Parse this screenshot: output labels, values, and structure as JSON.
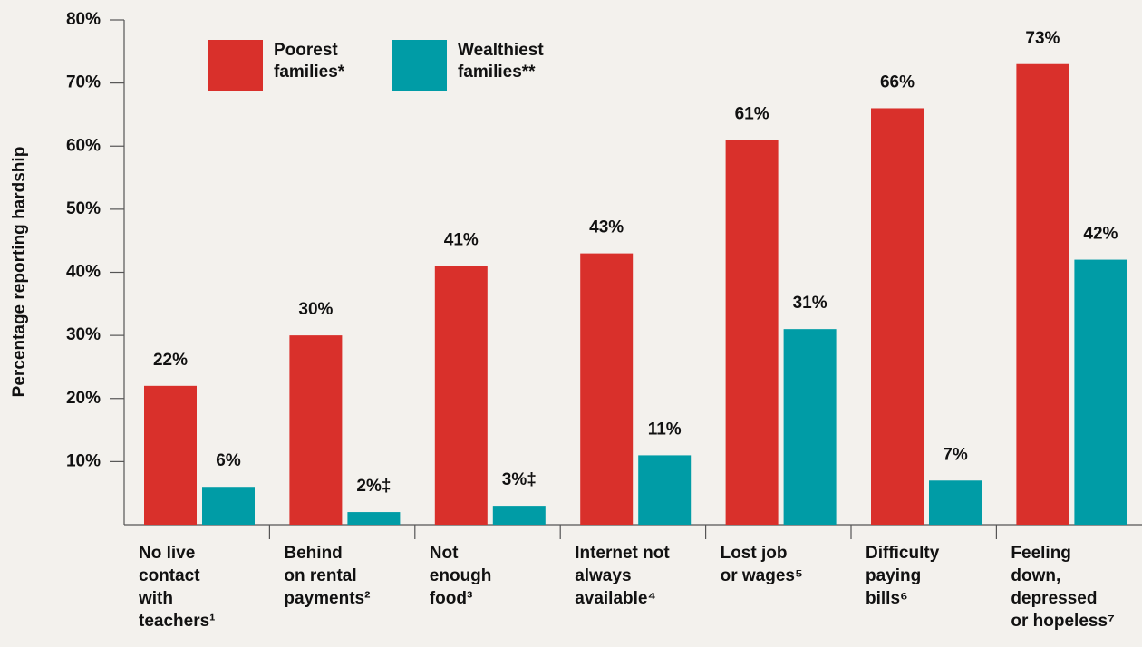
{
  "chart_data": {
    "type": "bar",
    "y_label": "Percentage reporting hardship",
    "categories": [
      [
        "No live",
        "contact",
        "with",
        "teachers¹"
      ],
      [
        "Behind",
        "on rental",
        "payments²"
      ],
      [
        "Not",
        "enough",
        "food³"
      ],
      [
        "Internet not",
        "always",
        "available⁴"
      ],
      [
        "Lost job",
        "or wages⁵"
      ],
      [
        "Difficulty",
        "paying",
        "bills⁶"
      ],
      [
        "Feeling",
        "down,",
        "depressed",
        "or hopeless⁷"
      ]
    ],
    "series": [
      {
        "name": "Poorest families*",
        "color": "#d9302b",
        "values": [
          22,
          30,
          41,
          43,
          61,
          66,
          73
        ],
        "value_labels": [
          "22%",
          "30%",
          "41%",
          "43%",
          "61%",
          "66%",
          "73%"
        ]
      },
      {
        "name": "Wealthiest families**",
        "color": "#009ca6",
        "values": [
          6,
          2,
          3,
          11,
          31,
          7,
          42
        ],
        "value_labels": [
          "6%",
          "2%‡",
          "3%‡",
          "11%",
          "31%",
          "7%",
          "42%"
        ]
      }
    ],
    "ylim": [
      0,
      80
    ],
    "yticks": [
      {
        "value": 10,
        "label": "10%"
      },
      {
        "value": 20,
        "label": "20%"
      },
      {
        "value": 30,
        "label": "30%"
      },
      {
        "value": 40,
        "label": "40%"
      },
      {
        "value": 50,
        "label": "50%"
      },
      {
        "value": 60,
        "label": "60%"
      },
      {
        "value": 70,
        "label": "70%"
      },
      {
        "value": 80,
        "label": "80%"
      }
    ],
    "legend": "top-left",
    "grid": false
  }
}
